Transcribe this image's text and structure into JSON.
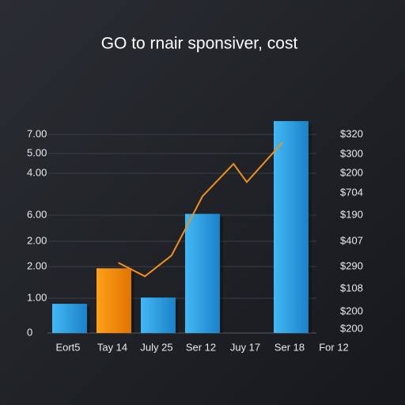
{
  "chart_data": {
    "type": "bar",
    "title": "GO to rnair sponsiver, cost",
    "categories": [
      "Eort5",
      "Tay 14",
      "July 25",
      "Ser 12",
      "Juy 17",
      "Ser 18",
      "For 12"
    ],
    "series": [
      {
        "type": "bar",
        "values": [
          1.03,
          2.28,
          1.25,
          4.2,
          null,
          7.47,
          null
        ],
        "colors": [
          "#2f9fe0",
          "#ff8a00",
          "#2f9fe0",
          "#2f9fe0",
          "#2f9fe0",
          "#2f9fe0",
          "#2f9fe0"
        ]
      },
      {
        "type": "line",
        "color": "#f0901a",
        "x": [
          1.1,
          1.7,
          2.3,
          3.0,
          3.7,
          4.0,
          4.8
        ],
        "values": [
          2.48,
          2.0,
          2.73,
          4.82,
          5.96,
          5.32,
          6.71
        ]
      }
    ],
    "ylim": [
      0,
      7.5
    ],
    "left_axis_labels": [
      "7.00",
      "5.00",
      "4.00",
      "6.00",
      "2.00",
      "2.00",
      "1.00",
      "0"
    ],
    "right_axis_labels": [
      "$320",
      "$300",
      "$200",
      "$704",
      "$190",
      "$407",
      "$290",
      "$108",
      "$200",
      "$200"
    ]
  }
}
